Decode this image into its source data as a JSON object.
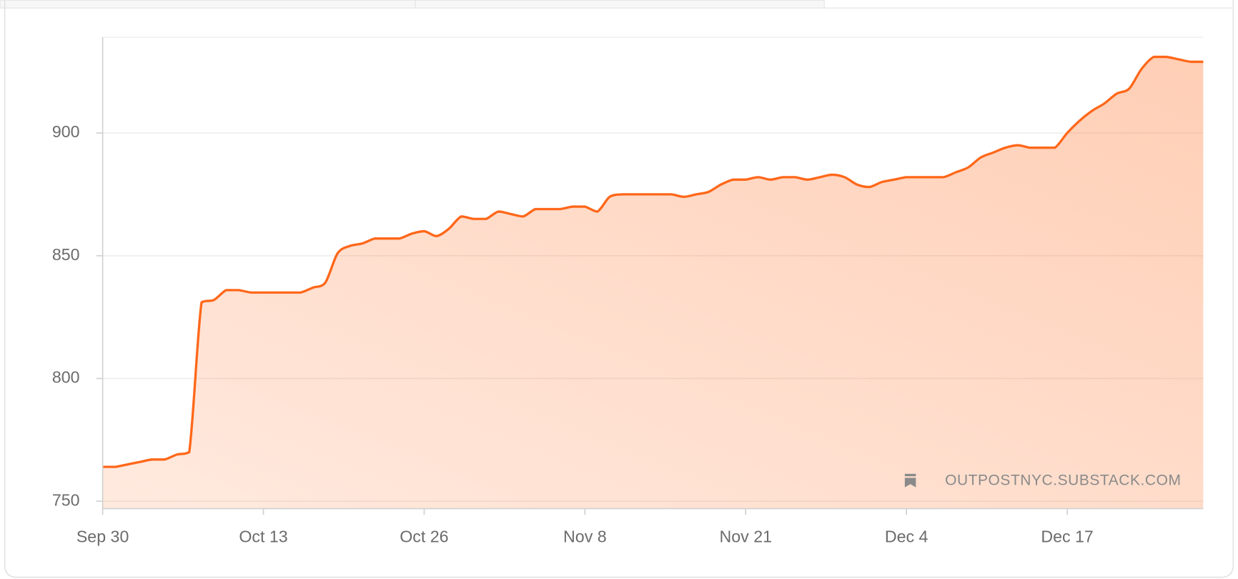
{
  "chart_data": {
    "type": "area",
    "watermark": "OUTPOSTNYC.SUBSTACK.COM",
    "x": [
      "Sep 30",
      "Oct 1",
      "Oct 2",
      "Oct 3",
      "Oct 4",
      "Oct 5",
      "Oct 6",
      "Oct 7",
      "Oct 8",
      "Oct 9",
      "Oct 10",
      "Oct 11",
      "Oct 12",
      "Oct 13",
      "Oct 14",
      "Oct 15",
      "Oct 16",
      "Oct 17",
      "Oct 18",
      "Oct 19",
      "Oct 20",
      "Oct 21",
      "Oct 22",
      "Oct 23",
      "Oct 24",
      "Oct 25",
      "Oct 26",
      "Oct 27",
      "Oct 28",
      "Oct 29",
      "Oct 30",
      "Oct 31",
      "Nov 1",
      "Nov 2",
      "Nov 3",
      "Nov 4",
      "Nov 5",
      "Nov 6",
      "Nov 7",
      "Nov 8",
      "Nov 9",
      "Nov 10",
      "Nov 11",
      "Nov 12",
      "Nov 13",
      "Nov 14",
      "Nov 15",
      "Nov 16",
      "Nov 17",
      "Nov 18",
      "Nov 19",
      "Nov 20",
      "Nov 21",
      "Nov 22",
      "Nov 23",
      "Nov 24",
      "Nov 25",
      "Nov 26",
      "Nov 27",
      "Nov 28",
      "Nov 29",
      "Nov 30",
      "Dec 1",
      "Dec 2",
      "Dec 3",
      "Dec 4",
      "Dec 5",
      "Dec 6",
      "Dec 7",
      "Dec 8",
      "Dec 9",
      "Dec 10",
      "Dec 11",
      "Dec 12",
      "Dec 13",
      "Dec 14",
      "Dec 15",
      "Dec 16",
      "Dec 17",
      "Dec 18",
      "Dec 19",
      "Dec 20",
      "Dec 21",
      "Dec 22",
      "Dec 23",
      "Dec 24",
      "Dec 25",
      "Dec 26",
      "Dec 27",
      "Dec 28"
    ],
    "series": [
      {
        "color": "#ff6719",
        "values": [
          764,
          764,
          765,
          766,
          767,
          767,
          769,
          770,
          831,
          832,
          836,
          836,
          835,
          835,
          835,
          835,
          835,
          837,
          839,
          851,
          854,
          855,
          857,
          857,
          857,
          859,
          860,
          858,
          861,
          866,
          865,
          865,
          868,
          867,
          866,
          869,
          869,
          869,
          870,
          870,
          868,
          874,
          875,
          875,
          875,
          875,
          875,
          874,
          875,
          876,
          879,
          881,
          881,
          882,
          881,
          882,
          882,
          881,
          882,
          883,
          882,
          879,
          878,
          880,
          881,
          882,
          882,
          882,
          882,
          884,
          886,
          890,
          892,
          894,
          895,
          894,
          894,
          894,
          900,
          905,
          909,
          912,
          916,
          918,
          926,
          931,
          931,
          930,
          929,
          929
        ]
      }
    ],
    "xticks": [
      "Sep 30",
      "Oct 13",
      "Oct 26",
      "Nov 8",
      "Nov 21",
      "Dec 4",
      "Dec 17"
    ],
    "ylim": [
      747,
      939
    ],
    "yticks": [
      750,
      800,
      850,
      900
    ],
    "grid": true
  }
}
